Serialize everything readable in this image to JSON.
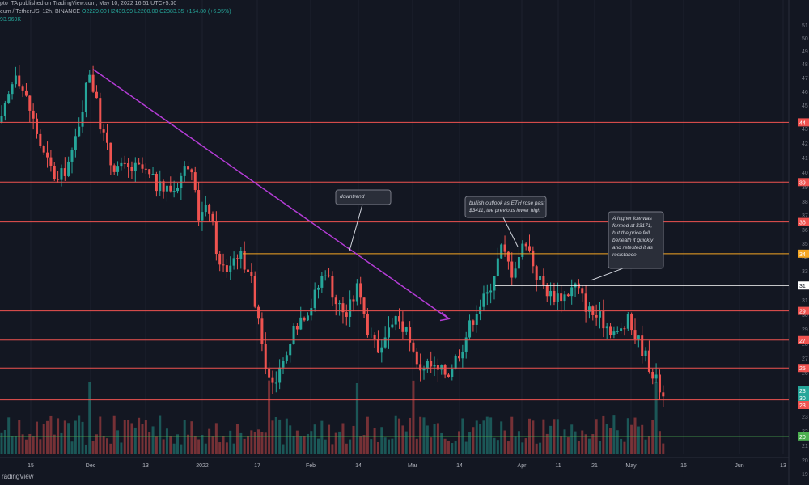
{
  "header": {
    "published": "pto_TA published on TradingView.com, May 10, 2022 16:51 UTC+5:30",
    "symbol": "eum / TetherUS, 12h, BINANCE",
    "ohlc": "O2229.00 H2439.99 L2200.00 C2383.35 +154.80 (+6.95%)",
    "volume": "93.969K"
  },
  "footer": {
    "brand": "radingView"
  },
  "colors": {
    "background": "#131722",
    "up": "#26a69a",
    "down": "#ef5350",
    "level": "#ef5350",
    "orange_level": "#f5a623",
    "white_level": "#ffffff",
    "trendline": "#b43cd6",
    "support_green": "#4caf50"
  },
  "annotations": [
    {
      "id": "downtrend",
      "lines": [
        "downtrend"
      ]
    },
    {
      "id": "bullish",
      "lines": [
        "bullish outlook as ETH rose past",
        "$3411, the previous lower high"
      ]
    },
    {
      "id": "higherlow",
      "lines": [
        "A higher low was",
        "formed at $3171,",
        "but the price fell",
        "beneath it quickly",
        "and retested it as",
        "resistance"
      ]
    }
  ],
  "chart_data": {
    "type": "candlestick",
    "timeframe": "12h",
    "x_tick_labels": [
      "15",
      "Dec",
      "13",
      "2022",
      "17",
      "Feb",
      "14",
      "Mar",
      "14",
      "Apr",
      "11",
      "21",
      "May",
      "16",
      "Jun",
      "13"
    ],
    "y_axis": {
      "range": [
        1900,
        5200
      ]
    },
    "y_tick_labels": [
      "51",
      "50",
      "49",
      "48",
      "47",
      "46",
      "45",
      "43",
      "42",
      "41",
      "40",
      "39",
      "38",
      "37",
      "36",
      "35",
      "34",
      "33",
      "32",
      "31",
      "30",
      "29",
      "28",
      "27",
      "26",
      "25",
      "24",
      "23",
      "22",
      "21",
      "20",
      "19"
    ],
    "levels": [
      {
        "price": 4400,
        "label": "44",
        "color": "red"
      },
      {
        "price": 3950,
        "label": "39",
        "color": "red"
      },
      {
        "price": 3650,
        "label": "36",
        "color": "red"
      },
      {
        "price": 3411,
        "label": "34",
        "color": "orange"
      },
      {
        "price": 3171,
        "label": "31",
        "color": "white"
      },
      {
        "price": 2980,
        "label": "29",
        "color": "red"
      },
      {
        "price": 2760,
        "label": "27",
        "color": "red"
      },
      {
        "price": 2550,
        "label": "25",
        "color": "red"
      },
      {
        "price": 2310,
        "label": "23",
        "color": "red"
      },
      {
        "price": 2035,
        "label": "20",
        "color": "green"
      }
    ],
    "price_badges": [
      {
        "label": "23",
        "color": "#26a69a"
      },
      {
        "label": "30",
        "color": "#26a69a"
      },
      {
        "label": "23",
        "color": "#ef5350"
      }
    ],
    "trendline": {
      "from_price": 4800,
      "to_price": 2920
    },
    "price_path": [
      [
        4400,
        0
      ],
      [
        4800,
        4
      ],
      [
        4500,
        8
      ],
      [
        4150,
        12
      ],
      [
        3950,
        16
      ],
      [
        4150,
        20
      ],
      [
        4790,
        25
      ],
      [
        4400,
        28
      ],
      [
        4100,
        31
      ],
      [
        4050,
        34
      ],
      [
        4050,
        40
      ],
      [
        3900,
        45
      ],
      [
        3900,
        49
      ],
      [
        4100,
        53
      ],
      [
        3700,
        56
      ],
      [
        3750,
        59
      ],
      [
        3310,
        62
      ],
      [
        3300,
        64
      ],
      [
        3420,
        67
      ],
      [
        3310,
        70
      ],
      [
        2950,
        73
      ],
      [
        2420,
        76
      ],
      [
        2550,
        80
      ],
      [
        2900,
        84
      ],
      [
        3030,
        88
      ],
      [
        3300,
        92
      ],
      [
        3050,
        95
      ],
      [
        2950,
        98
      ],
      [
        3150,
        101
      ],
      [
        2750,
        105
      ],
      [
        2650,
        108
      ],
      [
        2950,
        112
      ],
      [
        2800,
        115
      ],
      [
        2550,
        118
      ],
      [
        2580,
        121
      ],
      [
        2520,
        124
      ],
      [
        2520,
        127
      ],
      [
        2730,
        131
      ],
      [
        3000,
        135
      ],
      [
        3100,
        138
      ],
      [
        3450,
        142
      ],
      [
        3280,
        145
      ],
      [
        3520,
        149
      ],
      [
        3250,
        152
      ],
      [
        3100,
        156
      ],
      [
        3100,
        160
      ],
      [
        3170,
        163
      ],
      [
        2980,
        167
      ],
      [
        2900,
        171
      ],
      [
        2800,
        175
      ],
      [
        2900,
        178
      ],
      [
        2700,
        182
      ],
      [
        2450,
        186
      ],
      [
        2380,
        188
      ]
    ],
    "volume": {
      "spike_candles": [
        25,
        76,
        101,
        117,
        186
      ]
    }
  }
}
